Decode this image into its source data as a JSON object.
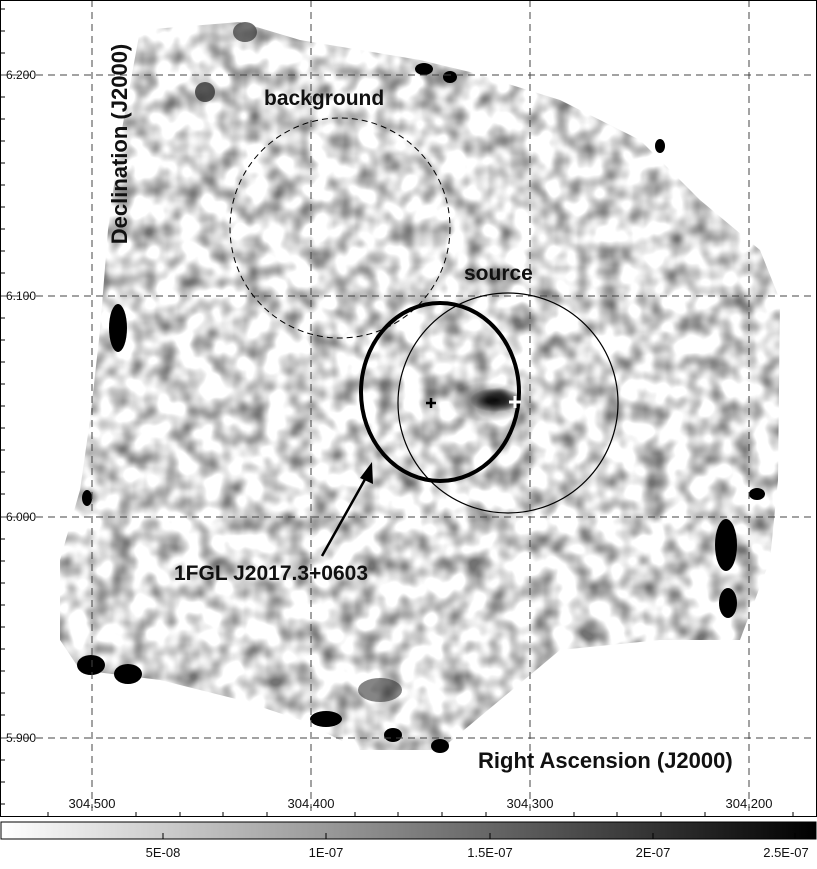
{
  "figure": {
    "y_axis_label": "Declination (J2000)",
    "x_axis_label": "Right Ascension (J2000)",
    "ra_ticks": [
      "304.500",
      "304.400",
      "304.300",
      "304.200"
    ],
    "dec_ticks": [
      "6.200",
      "6.100",
      "6.000",
      "5.900"
    ],
    "annotations": {
      "background": "background",
      "source": "source",
      "fermi_source": "1FGL J2017.3+0603"
    }
  },
  "colorbar": {
    "ticks": [
      "5E-08",
      "1E-07",
      "1.5E-07",
      "2E-07",
      "2.5E-07"
    ],
    "colors": [
      "#ffffff",
      "#000000"
    ]
  },
  "colors": {
    "ink": "#000000",
    "grid": "#444444"
  }
}
